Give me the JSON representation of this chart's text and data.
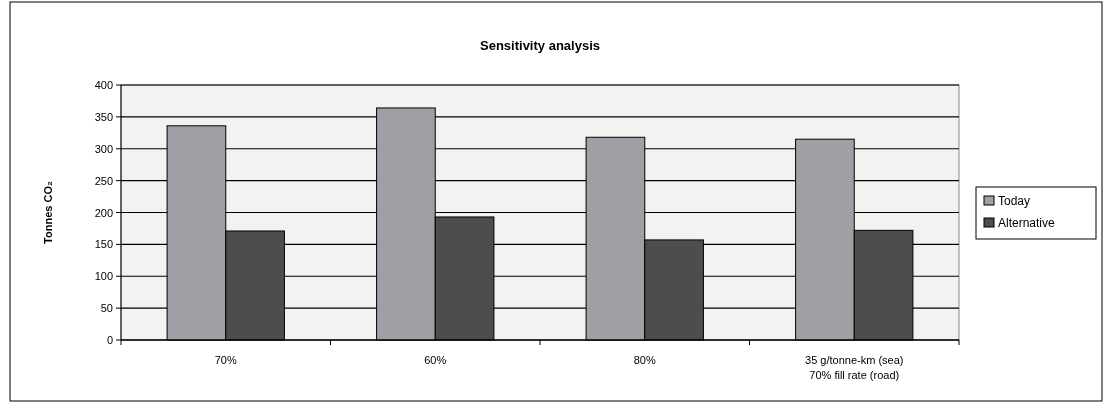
{
  "chart_data": {
    "type": "bar",
    "title": "Sensitivity analysis",
    "ylabel": "Tonnes CO₂",
    "categories": [
      "70%",
      "60%",
      "80%",
      "35 g/tonne-km (sea)\n70% fill rate (road)"
    ],
    "series": [
      {
        "name": "Today",
        "color": "#a09fa6",
        "values": [
          336,
          364,
          318,
          315
        ]
      },
      {
        "name": "Alternative",
        "color": "#4d4d4d",
        "values": [
          171,
          193,
          157,
          172
        ]
      }
    ],
    "ylim": [
      0,
      400
    ],
    "yticks": [
      0,
      50,
      100,
      150,
      200,
      250,
      300,
      350,
      400
    ],
    "grid": "y",
    "legend": "right"
  }
}
